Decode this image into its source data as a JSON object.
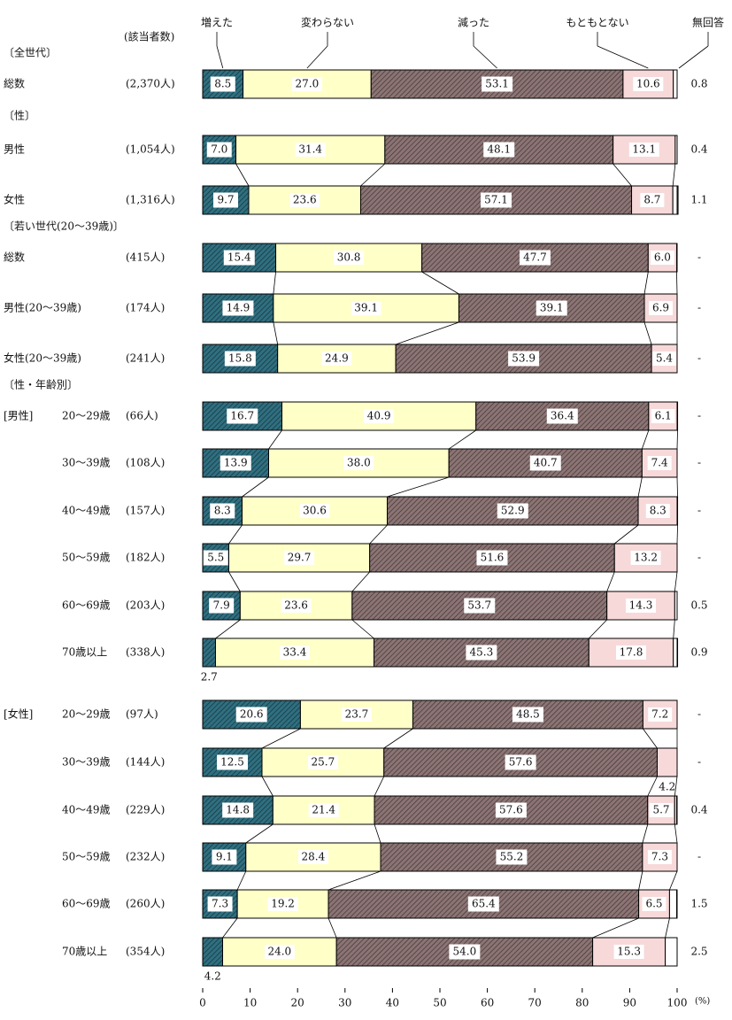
{
  "chart_data": {
    "type": "stacked-bar-horizontal",
    "count_header": "(該当者数)",
    "categories": [
      "総数",
      "男性",
      "女性",
      "総数",
      "男性(20～39歳)",
      "女性(20～39歳)",
      "20～29歳",
      "30～39歳",
      "40～49歳",
      "50～59歳",
      "60～69歳",
      "70歳以上",
      "20～29歳",
      "30～39歳",
      "40～49歳",
      "50～59歳",
      "60～69歳",
      "70歳以上"
    ],
    "counts": [
      "(2,370人)",
      "(1,054人)",
      "(1,316人)",
      "(415人)",
      "(174人)",
      "(241人)",
      "(66人)",
      "(108人)",
      "(157人)",
      "(182人)",
      "(203人)",
      "(338人)",
      "(97人)",
      "(144人)",
      "(229人)",
      "(232人)",
      "(260人)",
      "(354人)"
    ],
    "row_groups": [
      "〔全世代〕",
      "〔性〕",
      null,
      "〔若い世代(20～39歳)〕",
      null,
      null,
      "〔性・年齢別〕",
      null,
      null,
      null,
      null,
      null,
      null,
      null,
      null,
      null,
      null,
      null
    ],
    "subgroups": [
      null,
      null,
      null,
      null,
      null,
      null,
      "[男性]",
      null,
      null,
      null,
      null,
      null,
      "[女性]",
      null,
      null,
      null,
      null,
      null
    ],
    "series": [
      {
        "name": "増えた",
        "color": "#2f6f80",
        "hatch": true,
        "values": [
          8.5,
          7.0,
          9.7,
          15.4,
          14.9,
          15.8,
          16.7,
          13.9,
          8.3,
          5.5,
          7.9,
          2.7,
          20.6,
          12.5,
          14.8,
          9.1,
          7.3,
          4.2
        ],
        "value_labels": [
          "8.5",
          "7.0",
          "9.7",
          "15.4",
          "14.9",
          "15.8",
          "16.7",
          "13.9",
          "8.3",
          "5.5",
          "7.9",
          "2.7",
          "20.6",
          "12.5",
          "14.8",
          "9.1",
          "7.3",
          "4.2"
        ]
      },
      {
        "name": "変わらない",
        "color": "#ffffc8",
        "hatch": false,
        "values": [
          27.0,
          31.4,
          23.6,
          30.8,
          39.1,
          24.9,
          40.9,
          38.0,
          30.6,
          29.7,
          23.6,
          33.4,
          23.7,
          25.7,
          21.4,
          28.4,
          19.2,
          24.0
        ],
        "value_labels": [
          "27.0",
          "31.4",
          "23.6",
          "30.8",
          "39.1",
          "24.9",
          "40.9",
          "38.0",
          "30.6",
          "29.7",
          "23.6",
          "33.4",
          "23.7",
          "25.7",
          "21.4",
          "28.4",
          "19.2",
          "24.0"
        ]
      },
      {
        "name": "減った",
        "color": "#8c7474",
        "hatch": true,
        "values": [
          53.1,
          48.1,
          57.1,
          47.7,
          39.1,
          53.9,
          36.4,
          40.7,
          52.9,
          51.6,
          53.7,
          45.3,
          48.5,
          57.6,
          57.6,
          55.2,
          65.4,
          54.0
        ],
        "value_labels": [
          "53.1",
          "48.1",
          "57.1",
          "47.7",
          "39.1",
          "53.9",
          "36.4",
          "40.7",
          "52.9",
          "51.6",
          "53.7",
          "45.3",
          "48.5",
          "57.6",
          "57.6",
          "55.2",
          "65.4",
          "54.0"
        ]
      },
      {
        "name": "もともとない",
        "color": "#f7d9d9",
        "hatch": false,
        "values": [
          10.6,
          13.1,
          8.7,
          6.0,
          6.9,
          5.4,
          6.1,
          7.4,
          8.3,
          13.2,
          14.3,
          17.8,
          7.2,
          4.2,
          5.7,
          7.3,
          6.5,
          15.3
        ],
        "value_labels": [
          "10.6",
          "13.1",
          "8.7",
          "6.0",
          "6.9",
          "5.4",
          "6.1",
          "7.4",
          "8.3",
          "13.2",
          "14.3",
          "17.8",
          "7.2",
          "4.2",
          "5.7",
          "7.3",
          "6.5",
          "15.3"
        ]
      },
      {
        "name": "無回答",
        "color": "#ffffff",
        "hatch": false,
        "values": [
          0.8,
          0.4,
          1.1,
          null,
          null,
          null,
          null,
          null,
          null,
          null,
          0.5,
          0.9,
          null,
          null,
          0.4,
          null,
          1.5,
          2.5
        ],
        "value_labels": [
          "0.8",
          "0.4",
          "1.1",
          "-",
          "-",
          "-",
          "-",
          "-",
          "-",
          "-",
          "0.5",
          "0.9",
          "-",
          "-",
          "0.4",
          "-",
          "1.5",
          "2.5"
        ]
      }
    ],
    "xlim": [
      0,
      100
    ],
    "xticks": [
      0,
      10,
      20,
      30,
      40,
      50,
      60,
      70,
      80,
      90,
      100
    ],
    "x_unit": "(%)"
  }
}
